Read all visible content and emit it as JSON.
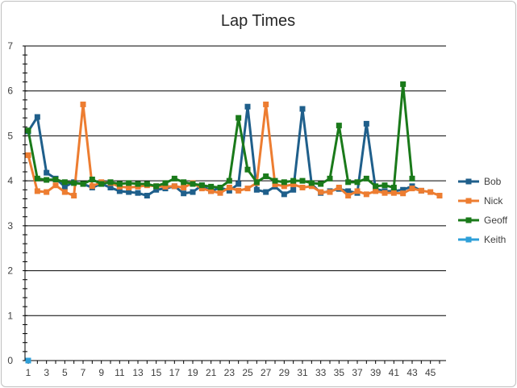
{
  "chart_data": {
    "type": "line",
    "title": "Lap Times",
    "xlabel": "",
    "ylabel": "",
    "ylim": [
      0,
      7
    ],
    "y_ticks": [
      "0",
      "1",
      "2",
      "3",
      "4",
      "5",
      "6",
      "7"
    ],
    "x_tick_labels": [
      "1",
      "3",
      "5",
      "7",
      "9",
      "11",
      "13",
      "15",
      "17",
      "19",
      "21",
      "23",
      "25",
      "27",
      "29",
      "31",
      "33",
      "35",
      "37",
      "39",
      "41",
      "43",
      "45"
    ],
    "grid": true,
    "legend_position": "right",
    "x": [
      1,
      2,
      3,
      4,
      5,
      6,
      7,
      8,
      9,
      10,
      11,
      12,
      13,
      14,
      15,
      16,
      17,
      18,
      19,
      20,
      21,
      22,
      23,
      24,
      25,
      26,
      27,
      28,
      29,
      30,
      31,
      32,
      33,
      34,
      35,
      36,
      37,
      38,
      39,
      40,
      41,
      42,
      43,
      44,
      45,
      46
    ],
    "series": [
      {
        "name": "Bob",
        "color": "#1f5f8b",
        "values": [
          5.1,
          5.42,
          4.18,
          4.05,
          3.87,
          3.97,
          3.93,
          3.85,
          3.93,
          3.85,
          3.77,
          3.75,
          3.73,
          3.67,
          3.8,
          3.83,
          3.88,
          3.72,
          3.75,
          3.9,
          3.77,
          3.85,
          3.78,
          3.93,
          5.65,
          3.8,
          3.75,
          3.87,
          3.7,
          3.8,
          5.6,
          3.93,
          3.73,
          3.77,
          3.82,
          3.77,
          3.73,
          5.27,
          3.82,
          3.77,
          3.77,
          3.8,
          3.88,
          3.78,
          null,
          null
        ]
      },
      {
        "name": "Nick",
        "color": "#ed7d31",
        "values": [
          4.57,
          3.77,
          3.75,
          3.9,
          3.75,
          3.67,
          5.7,
          3.88,
          3.97,
          3.95,
          3.87,
          3.85,
          3.87,
          3.9,
          3.88,
          3.87,
          3.88,
          3.85,
          3.95,
          3.83,
          3.77,
          3.73,
          3.85,
          3.78,
          3.83,
          3.95,
          5.7,
          3.92,
          3.88,
          3.92,
          3.85,
          3.88,
          3.75,
          3.75,
          3.85,
          3.67,
          3.77,
          3.7,
          3.77,
          3.73,
          3.73,
          3.72,
          3.83,
          3.78,
          3.75,
          3.67
        ]
      },
      {
        "name": "Geoff",
        "color": "#1a7a1a",
        "values": [
          5.12,
          4.05,
          4.02,
          4.03,
          3.97,
          3.95,
          3.93,
          4.03,
          3.93,
          3.97,
          3.93,
          3.95,
          3.93,
          3.93,
          3.88,
          3.95,
          4.05,
          3.97,
          3.93,
          3.9,
          3.87,
          3.85,
          4.0,
          5.4,
          4.25,
          3.97,
          4.1,
          4.0,
          3.97,
          4.0,
          4.0,
          3.95,
          3.93,
          4.05,
          5.23,
          3.97,
          3.97,
          4.05,
          3.88,
          3.9,
          3.85,
          6.15,
          4.05,
          null,
          null,
          null
        ]
      },
      {
        "name": "Keith",
        "color": "#2e9fd8",
        "values": [
          0,
          null,
          null,
          null,
          null,
          null,
          null,
          null,
          null,
          null,
          null,
          null,
          null,
          null,
          null,
          null,
          null,
          null,
          null,
          null,
          null,
          null,
          null,
          null,
          null,
          null,
          null,
          null,
          null,
          null,
          null,
          null,
          null,
          null,
          null,
          null,
          null,
          null,
          null,
          null,
          null,
          null,
          null,
          null,
          null,
          null
        ]
      }
    ]
  }
}
